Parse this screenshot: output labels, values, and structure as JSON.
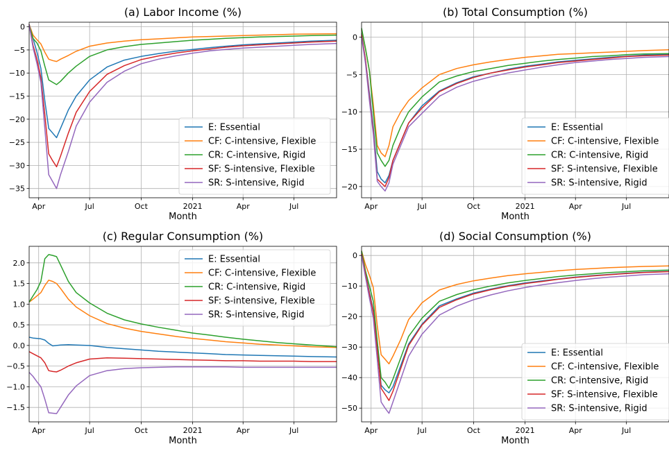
{
  "chart_data": [
    {
      "type": "line",
      "title": "(a) Labor Income (%)",
      "xlabel": "Month",
      "ylabel": "",
      "xlim": [
        "2020-03-15",
        "2021-09-15"
      ],
      "ylim": [
        -37,
        1
      ],
      "yticks": [
        0,
        -5,
        -10,
        -15,
        -20,
        -25,
        -30,
        -35
      ],
      "xticks": [
        {
          "date": "2020-04-01",
          "label": "Apr"
        },
        {
          "date": "2020-07-01",
          "label": "Jul"
        },
        {
          "date": "2020-10-01",
          "label": "Oct"
        },
        {
          "date": "2021-01-01",
          "label": "2021"
        },
        {
          "date": "2021-04-01",
          "label": "Apr"
        },
        {
          "date": "2021-07-01",
          "label": "Jul"
        }
      ],
      "grid": true,
      "legend": "lower right",
      "x": [
        "2020-03-15",
        "2020-03-22",
        "2020-03-29",
        "2020-04-05",
        "2020-04-12",
        "2020-04-19",
        "2020-04-26",
        "2020-05-03",
        "2020-05-10",
        "2020-05-24",
        "2020-06-07",
        "2020-07-01",
        "2020-08-01",
        "2020-09-01",
        "2020-10-01",
        "2020-11-01",
        "2020-12-01",
        "2021-01-01",
        "2021-02-01",
        "2021-03-01",
        "2021-04-01",
        "2021-05-01",
        "2021-06-01",
        "2021-07-01",
        "2021-08-01",
        "2021-09-15"
      ],
      "series": [
        {
          "name": "E: Essential",
          "color": "#1f77b4",
          "values": [
            0.5,
            -2.5,
            -5.5,
            -9,
            -16,
            -22,
            -23,
            -24,
            -22,
            -18,
            -15,
            -11.5,
            -8.7,
            -7.2,
            -6.4,
            -5.8,
            -5.3,
            -4.9,
            -4.5,
            -4.2,
            -3.9,
            -3.7,
            -3.5,
            -3.3,
            -3.1,
            -2.9
          ]
        },
        {
          "name": "CF: C-intensive, Flexible",
          "color": "#ff7f0e",
          "values": [
            0.5,
            -1.8,
            -2.8,
            -3.7,
            -5.5,
            -7,
            -7.3,
            -7.5,
            -7,
            -6.2,
            -5.3,
            -4.2,
            -3.5,
            -3.1,
            -2.8,
            -2.6,
            -2.4,
            -2.2,
            -2.1,
            -2.0,
            -1.9,
            -1.8,
            -1.7,
            -1.6,
            -1.55,
            -1.5
          ]
        },
        {
          "name": "CR: C-intensive, Rigid",
          "color": "#2ca02c",
          "values": [
            0.5,
            -2.5,
            -3.5,
            -5.2,
            -8.5,
            -11.5,
            -12,
            -12.5,
            -11.8,
            -10,
            -8.5,
            -6.4,
            -5,
            -4.3,
            -3.8,
            -3.5,
            -3.2,
            -2.9,
            -2.7,
            -2.5,
            -2.35,
            -2.2,
            -2.1,
            -2.0,
            -1.9,
            -1.8
          ]
        },
        {
          "name": "SF: S-intensive, Flexible",
          "color": "#d62728",
          "values": [
            0.5,
            -4,
            -7,
            -11,
            -19,
            -27.5,
            -29,
            -30.3,
            -28,
            -23,
            -18.5,
            -14,
            -10.3,
            -8.4,
            -7.1,
            -6.3,
            -5.7,
            -5.2,
            -4.8,
            -4.4,
            -4.1,
            -3.9,
            -3.7,
            -3.5,
            -3.3,
            -3.1
          ]
        },
        {
          "name": "SR: S-intensive, Rigid",
          "color": "#9467bd",
          "values": [
            0.5,
            -4.5,
            -8,
            -12,
            -22,
            -32,
            -33.5,
            -35,
            -32,
            -27,
            -21.5,
            -16.3,
            -12,
            -9.6,
            -8,
            -7,
            -6.3,
            -5.7,
            -5.2,
            -4.9,
            -4.6,
            -4.4,
            -4.2,
            -4.0,
            -3.8,
            -3.6
          ]
        }
      ]
    },
    {
      "type": "line",
      "title": "(b) Total Consumption (%)",
      "xlabel": "Month",
      "ylabel": "",
      "xlim": [
        "2020-03-15",
        "2021-09-15"
      ],
      "ylim": [
        -21.5,
        2
      ],
      "yticks": [
        0,
        -5,
        -10,
        -15,
        -20
      ],
      "xticks": [
        {
          "date": "2020-04-01",
          "label": "Apr"
        },
        {
          "date": "2020-07-01",
          "label": "Jul"
        },
        {
          "date": "2020-10-01",
          "label": "Oct"
        },
        {
          "date": "2021-01-01",
          "label": "2021"
        },
        {
          "date": "2021-04-01",
          "label": "Apr"
        },
        {
          "date": "2021-07-01",
          "label": "Jul"
        }
      ],
      "grid": true,
      "legend": "lower right",
      "x": [
        "2020-03-15",
        "2020-03-22",
        "2020-03-29",
        "2020-04-05",
        "2020-04-12",
        "2020-04-19",
        "2020-04-26",
        "2020-05-03",
        "2020-05-10",
        "2020-05-24",
        "2020-06-07",
        "2020-07-01",
        "2020-08-01",
        "2020-09-01",
        "2020-10-01",
        "2020-11-01",
        "2020-12-01",
        "2021-01-01",
        "2021-02-01",
        "2021-03-01",
        "2021-04-01",
        "2021-05-01",
        "2021-06-01",
        "2021-07-01",
        "2021-08-01",
        "2021-09-15"
      ],
      "series": [
        {
          "name": "E: Essential",
          "color": "#1f77b4",
          "values": [
            0.5,
            -3,
            -7.5,
            -12,
            -18,
            -19,
            -19.5,
            -18.5,
            -16.5,
            -14,
            -11.5,
            -9.2,
            -7.2,
            -6.1,
            -5.3,
            -4.8,
            -4.3,
            -3.9,
            -3.6,
            -3.3,
            -3.1,
            -2.9,
            -2.7,
            -2.55,
            -2.4,
            -2.3
          ]
        },
        {
          "name": "CF: C-intensive, Flexible",
          "color": "#ff7f0e",
          "values": [
            1,
            -1.5,
            -4.5,
            -9,
            -14.5,
            -15.5,
            -16,
            -14.5,
            -12,
            -10,
            -8.5,
            -6.8,
            -5,
            -4.2,
            -3.7,
            -3.3,
            -3.0,
            -2.7,
            -2.5,
            -2.3,
            -2.2,
            -2.1,
            -2.0,
            -1.9,
            -1.8,
            -1.7
          ]
        },
        {
          "name": "CR: C-intensive, Rigid",
          "color": "#2ca02c",
          "values": [
            1.2,
            -1.5,
            -4.5,
            -10,
            -15.5,
            -16.5,
            -17.3,
            -16.5,
            -14.5,
            -12,
            -10,
            -8,
            -6,
            -5.2,
            -4.6,
            -4.2,
            -3.8,
            -3.5,
            -3.2,
            -3.0,
            -2.8,
            -2.6,
            -2.5,
            -2.35,
            -2.25,
            -2.2
          ]
        },
        {
          "name": "SF: S-intensive, Flexible",
          "color": "#d62728",
          "values": [
            0.3,
            -3,
            -8,
            -12.5,
            -19,
            -19.5,
            -20,
            -18.8,
            -16.5,
            -14,
            -11.5,
            -9.5,
            -7.3,
            -6.2,
            -5.4,
            -4.8,
            -4.4,
            -4.0,
            -3.7,
            -3.4,
            -3.2,
            -3.0,
            -2.8,
            -2.6,
            -2.5,
            -2.4
          ]
        },
        {
          "name": "SR: S-intensive, Rigid",
          "color": "#9467bd",
          "values": [
            0,
            -3.5,
            -8.5,
            -13,
            -19.3,
            -20,
            -20.6,
            -19.5,
            -17,
            -14.5,
            -12,
            -10.2,
            -7.9,
            -6.7,
            -5.9,
            -5.3,
            -4.8,
            -4.4,
            -4.0,
            -3.7,
            -3.4,
            -3.2,
            -3.0,
            -2.85,
            -2.7,
            -2.6
          ]
        }
      ]
    },
    {
      "type": "line",
      "title": "(c) Regular Consumption (%)",
      "xlabel": "Month",
      "ylabel": "",
      "xlim": [
        "2020-03-15",
        "2021-09-15"
      ],
      "ylim": [
        -1.85,
        2.4
      ],
      "yticks": [
        2.0,
        1.5,
        1.0,
        0.5,
        0.0,
        -0.5,
        -1.0,
        -1.5
      ],
      "ytickLabels": [
        "2.0",
        "1.5",
        "1.0",
        "0.5",
        "0.0",
        "−0.5",
        "−1.0",
        "−1.5"
      ],
      "xticks": [
        {
          "date": "2020-04-01",
          "label": "Apr"
        },
        {
          "date": "2020-07-01",
          "label": "Jul"
        },
        {
          "date": "2020-10-01",
          "label": "Oct"
        },
        {
          "date": "2021-01-01",
          "label": "2021"
        },
        {
          "date": "2021-04-01",
          "label": "Apr"
        },
        {
          "date": "2021-07-01",
          "label": "Jul"
        }
      ],
      "grid": true,
      "legend": "upper right",
      "x": [
        "2020-03-15",
        "2020-03-22",
        "2020-03-29",
        "2020-04-05",
        "2020-04-12",
        "2020-04-19",
        "2020-04-26",
        "2020-05-03",
        "2020-05-10",
        "2020-05-24",
        "2020-06-07",
        "2020-07-01",
        "2020-08-01",
        "2020-09-01",
        "2020-10-01",
        "2020-11-01",
        "2020-12-01",
        "2021-01-01",
        "2021-02-01",
        "2021-03-01",
        "2021-04-01",
        "2021-05-01",
        "2021-06-01",
        "2021-07-01",
        "2021-08-01",
        "2021-09-15"
      ],
      "series": [
        {
          "name": "E: Essential",
          "color": "#1f77b4",
          "values": [
            0.2,
            0.18,
            0.17,
            0.16,
            0.13,
            0.05,
            -0.01,
            0.0,
            0.01,
            0.02,
            0.01,
            0.0,
            -0.05,
            -0.08,
            -0.11,
            -0.14,
            -0.16,
            -0.18,
            -0.2,
            -0.22,
            -0.23,
            -0.24,
            -0.25,
            -0.26,
            -0.27,
            -0.28
          ]
        },
        {
          "name": "CF: C-intensive, Flexible",
          "color": "#ff7f0e",
          "values": [
            1.05,
            1.12,
            1.2,
            1.28,
            1.45,
            1.58,
            1.55,
            1.5,
            1.38,
            1.12,
            0.93,
            0.72,
            0.53,
            0.42,
            0.34,
            0.28,
            0.22,
            0.17,
            0.13,
            0.09,
            0.06,
            0.03,
            0.01,
            -0.01,
            -0.03,
            -0.05
          ]
        },
        {
          "name": "CR: C-intensive, Rigid",
          "color": "#2ca02c",
          "values": [
            1.05,
            1.2,
            1.35,
            1.55,
            2.1,
            2.2,
            2.18,
            2.15,
            1.95,
            1.55,
            1.28,
            1.03,
            0.78,
            0.62,
            0.52,
            0.44,
            0.37,
            0.3,
            0.25,
            0.2,
            0.15,
            0.11,
            0.07,
            0.04,
            0.01,
            -0.03
          ]
        },
        {
          "name": "SF: S-intensive, Flexible",
          "color": "#d62728",
          "values": [
            -0.15,
            -0.2,
            -0.25,
            -0.3,
            -0.42,
            -0.61,
            -0.63,
            -0.64,
            -0.6,
            -0.5,
            -0.42,
            -0.33,
            -0.3,
            -0.31,
            -0.32,
            -0.33,
            -0.34,
            -0.35,
            -0.36,
            -0.37,
            -0.37,
            -0.38,
            -0.38,
            -0.38,
            -0.39,
            -0.39
          ]
        },
        {
          "name": "SR: S-intensive, Rigid",
          "color": "#9467bd",
          "values": [
            -0.65,
            -0.75,
            -0.88,
            -1.0,
            -1.3,
            -1.63,
            -1.64,
            -1.65,
            -1.5,
            -1.2,
            -0.98,
            -0.73,
            -0.61,
            -0.56,
            -0.54,
            -0.53,
            -0.52,
            -0.52,
            -0.52,
            -0.52,
            -0.53,
            -0.53,
            -0.53,
            -0.53,
            -0.53,
            -0.53
          ]
        }
      ]
    },
    {
      "type": "line",
      "title": "(d) Social Consumption (%)",
      "xlabel": "Month",
      "ylabel": "",
      "xlim": [
        "2020-03-15",
        "2021-09-15"
      ],
      "ylim": [
        -54.5,
        3
      ],
      "yticks": [
        0,
        -10,
        -20,
        -30,
        -40,
        -50
      ],
      "xticks": [
        {
          "date": "2020-04-01",
          "label": "Apr"
        },
        {
          "date": "2020-07-01",
          "label": "Jul"
        },
        {
          "date": "2020-10-01",
          "label": "Oct"
        },
        {
          "date": "2021-01-01",
          "label": "2021"
        },
        {
          "date": "2021-04-01",
          "label": "Apr"
        },
        {
          "date": "2021-07-01",
          "label": "Jul"
        }
      ],
      "grid": true,
      "legend": "lower right",
      "x": [
        "2020-03-15",
        "2020-03-22",
        "2020-03-29",
        "2020-04-05",
        "2020-04-12",
        "2020-04-19",
        "2020-04-26",
        "2020-05-03",
        "2020-05-10",
        "2020-05-24",
        "2020-06-07",
        "2020-07-01",
        "2020-08-01",
        "2020-09-01",
        "2020-10-01",
        "2020-11-01",
        "2020-12-01",
        "2021-01-01",
        "2021-02-01",
        "2021-03-01",
        "2021-04-01",
        "2021-05-01",
        "2021-06-01",
        "2021-07-01",
        "2021-08-01",
        "2021-09-15"
      ],
      "series": [
        {
          "name": "E: Essential",
          "color": "#1f77b4",
          "values": [
            1,
            -6,
            -12,
            -18,
            -30,
            -42.5,
            -44,
            -45,
            -43,
            -36,
            -29,
            -22.5,
            -16.5,
            -14.2,
            -12.3,
            -11,
            -9.9,
            -9,
            -8.3,
            -7.7,
            -7.1,
            -6.6,
            -6.2,
            -5.8,
            -5.5,
            -5.2
          ]
        },
        {
          "name": "CF: C-intensive, Flexible",
          "color": "#ff7f0e",
          "values": [
            1.5,
            -3,
            -6.5,
            -10.5,
            -23,
            -32.5,
            -34,
            -35.5,
            -33,
            -27.5,
            -21,
            -15.5,
            -11.3,
            -9.5,
            -8.3,
            -7.4,
            -6.6,
            -6.0,
            -5.5,
            -5.0,
            -4.6,
            -4.3,
            -4.0,
            -3.8,
            -3.6,
            -3.4
          ]
        },
        {
          "name": "CR: C-intensive, Rigid",
          "color": "#2ca02c",
          "values": [
            1.5,
            -5,
            -10,
            -15,
            -28,
            -40,
            -41.5,
            -43.5,
            -40.5,
            -33.5,
            -26.5,
            -20.5,
            -15,
            -12.8,
            -11.2,
            -10,
            -9,
            -8.2,
            -7.5,
            -6.9,
            -6.4,
            -6.0,
            -5.6,
            -5.3,
            -5.0,
            -4.8
          ]
        },
        {
          "name": "SF: S-intensive, Flexible",
          "color": "#d62728",
          "values": [
            0.5,
            -6,
            -12.5,
            -18.5,
            -31,
            -43.5,
            -45.5,
            -47.5,
            -44.5,
            -37,
            -29.5,
            -22.8,
            -17,
            -14.5,
            -12.6,
            -11.2,
            -10.1,
            -9.2,
            -8.5,
            -7.8,
            -7.2,
            -6.7,
            -6.3,
            -5.9,
            -5.6,
            -5.3
          ]
        },
        {
          "name": "SR: S-intensive, Rigid",
          "color": "#9467bd",
          "values": [
            0,
            -7,
            -14,
            -20.5,
            -34,
            -48,
            -50,
            -51.7,
            -48,
            -40.5,
            -33,
            -25.8,
            -19.5,
            -16.6,
            -14.5,
            -12.9,
            -11.6,
            -10.5,
            -9.6,
            -8.9,
            -8.2,
            -7.6,
            -7.1,
            -6.7,
            -6.3,
            -6.0
          ]
        }
      ]
    }
  ]
}
